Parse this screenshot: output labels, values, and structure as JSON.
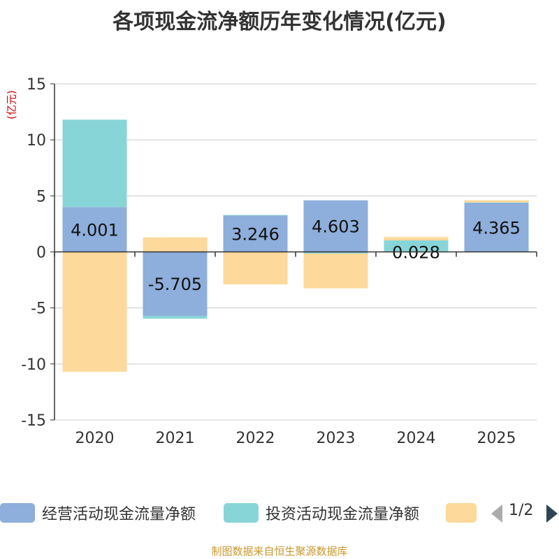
{
  "title": "各项现金流净额历年变化情况(亿元)",
  "unit_label": "(亿元)",
  "footer": "制图数据来自恒生聚源数据库",
  "legend": {
    "items": [
      {
        "label": "经营活动现金流量净额",
        "color": "#8eaedb"
      },
      {
        "label": "投资活动现金流量净额",
        "color": "#88d5d8"
      },
      {
        "label": "",
        "color": "#fdd99b"
      }
    ],
    "page": "1/2"
  },
  "chart_data": {
    "type": "bar",
    "stacked": true,
    "categories": [
      "2020",
      "2021",
      "2022",
      "2023",
      "2024",
      "2025"
    ],
    "ylim": [
      -15,
      15
    ],
    "yticks": [
      15,
      10,
      5,
      0,
      -5,
      -10,
      -15
    ],
    "series": [
      {
        "name": "经营活动现金流量净额",
        "color": "#8eaedb",
        "values": [
          4.001,
          -5.705,
          3.246,
          4.603,
          0.028,
          4.365
        ],
        "labels": [
          "4.001",
          "-5.705",
          "3.246",
          "4.603",
          "0.028",
          "4.365"
        ]
      },
      {
        "name": "投资活动现金流量净额",
        "color": "#88d5d8",
        "values": [
          7.8,
          -0.25,
          0.05,
          -0.15,
          1.0,
          0.05
        ]
      },
      {
        "name": "",
        "color": "#fdd99b",
        "values": [
          -10.7,
          1.3,
          -2.9,
          -3.1,
          0.3,
          0.2
        ]
      }
    ]
  }
}
